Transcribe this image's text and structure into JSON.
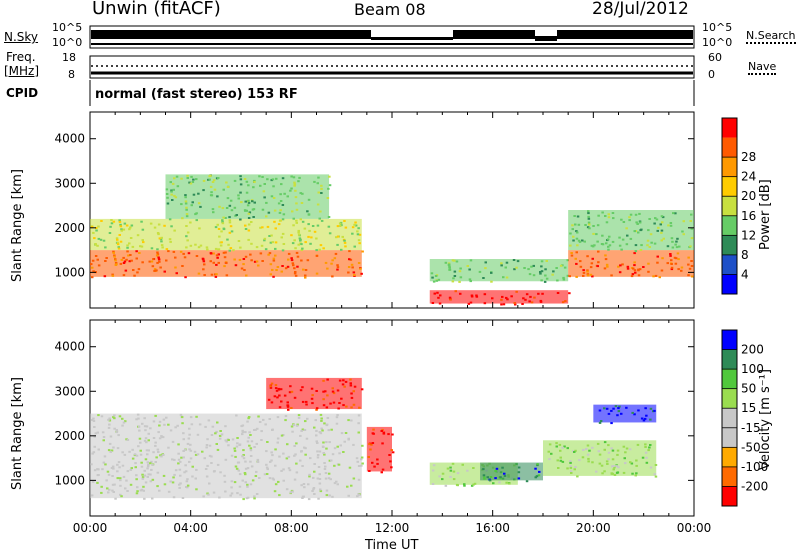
{
  "header": {
    "station": "Unwin (fitACF)",
    "beam": "Beam 08",
    "date": "28/Jul/2012"
  },
  "status_panels": {
    "nsky_label": "N.Sky",
    "nsky_ticks": [
      "10^5",
      "10^0"
    ],
    "nsearch_label": "N.Search",
    "freq_label": "Freq.",
    "freq_unit": "[MHz]",
    "freq_ticks": [
      "18",
      "8"
    ],
    "nave_ticks": [
      "60",
      "0"
    ],
    "nave_label": "Nave",
    "cpid_label": "CPID",
    "cpid_text": "normal (fast stereo) 153 RF"
  },
  "colors": {
    "power_scale": [
      "#0000ff",
      "#1e50c8",
      "#2e8b57",
      "#66cc66",
      "#c8e040",
      "#ffcc00",
      "#ff9900",
      "#ff5a00",
      "#ff0000"
    ],
    "velocity_scale": [
      "#ff0000",
      "#ff6a00",
      "#ffaa00",
      "#c8c8c8",
      "#c8c8c8",
      "#9adc50",
      "#50c83c",
      "#2e8b57",
      "#0000ff"
    ],
    "ground_scatter": "#c0c0c0"
  },
  "chart_data": [
    {
      "type": "heatmap",
      "title": "",
      "xlabel": "Time UT",
      "ylabel": "Slant Range [km]",
      "xlim": [
        "00:00",
        "24:00"
      ],
      "ylim": [
        200,
        4600
      ],
      "x_ticks": [
        "00:00",
        "04:00",
        "08:00",
        "12:00",
        "16:00",
        "20:00",
        "00:00"
      ],
      "y_ticks": [
        "1000",
        "2000",
        "3000",
        "4000"
      ],
      "colorbar": {
        "label": "Power [dB]",
        "ticks": [
          "4",
          "8",
          "12",
          "16",
          "20",
          "24",
          "28"
        ],
        "range": [
          0,
          30
        ]
      },
      "regions": [
        {
          "t": [
            0.0,
            10.8
          ],
          "r": [
            900,
            1500
          ],
          "value": 26
        },
        {
          "t": [
            0.0,
            10.8
          ],
          "r": [
            1500,
            2200
          ],
          "value": 14
        },
        {
          "t": [
            3.0,
            9.5
          ],
          "r": [
            2200,
            3200
          ],
          "value": 10
        },
        {
          "t": [
            13.5,
            19.0
          ],
          "r": [
            800,
            1300
          ],
          "value": 12
        },
        {
          "t": [
            13.5,
            19.0
          ],
          "r": [
            300,
            600
          ],
          "value": 27
        },
        {
          "t": [
            19.0,
            24.0
          ],
          "r": [
            900,
            1500
          ],
          "value": 24
        },
        {
          "t": [
            19.0,
            24.0
          ],
          "r": [
            1500,
            2400
          ],
          "value": 10
        }
      ]
    },
    {
      "type": "heatmap",
      "title": "",
      "xlabel": "Time UT",
      "ylabel": "Slant Range [km]",
      "xlim": [
        "00:00",
        "24:00"
      ],
      "ylim": [
        200,
        4600
      ],
      "x_ticks": [
        "00:00",
        "04:00",
        "08:00",
        "12:00",
        "16:00",
        "20:00",
        "00:00"
      ],
      "y_ticks": [
        "1000",
        "2000",
        "3000",
        "4000"
      ],
      "colorbar": {
        "label": "Velocity [m s⁻¹]",
        "ticks": [
          "200",
          "100",
          "50",
          "15",
          "-15",
          "-50",
          "-100",
          "-200"
        ],
        "range": [
          -250,
          250
        ]
      },
      "regions": [
        {
          "t": [
            0.0,
            10.8
          ],
          "r": [
            600,
            2500
          ],
          "value": 0
        },
        {
          "t": [
            7.0,
            10.8
          ],
          "r": [
            2600,
            3300
          ],
          "value": -200
        },
        {
          "t": [
            11.0,
            12.0
          ],
          "r": [
            1200,
            2200
          ],
          "value": -200
        },
        {
          "t": [
            13.5,
            17.0
          ],
          "r": [
            900,
            1400
          ],
          "value": 80
        },
        {
          "t": [
            15.5,
            18.0
          ],
          "r": [
            1000,
            1400
          ],
          "value": 180
        },
        {
          "t": [
            20.0,
            22.5
          ],
          "r": [
            2300,
            2700
          ],
          "value": 220
        },
        {
          "t": [
            18.0,
            22.5
          ],
          "r": [
            1100,
            1900
          ],
          "value": 60
        }
      ]
    }
  ]
}
